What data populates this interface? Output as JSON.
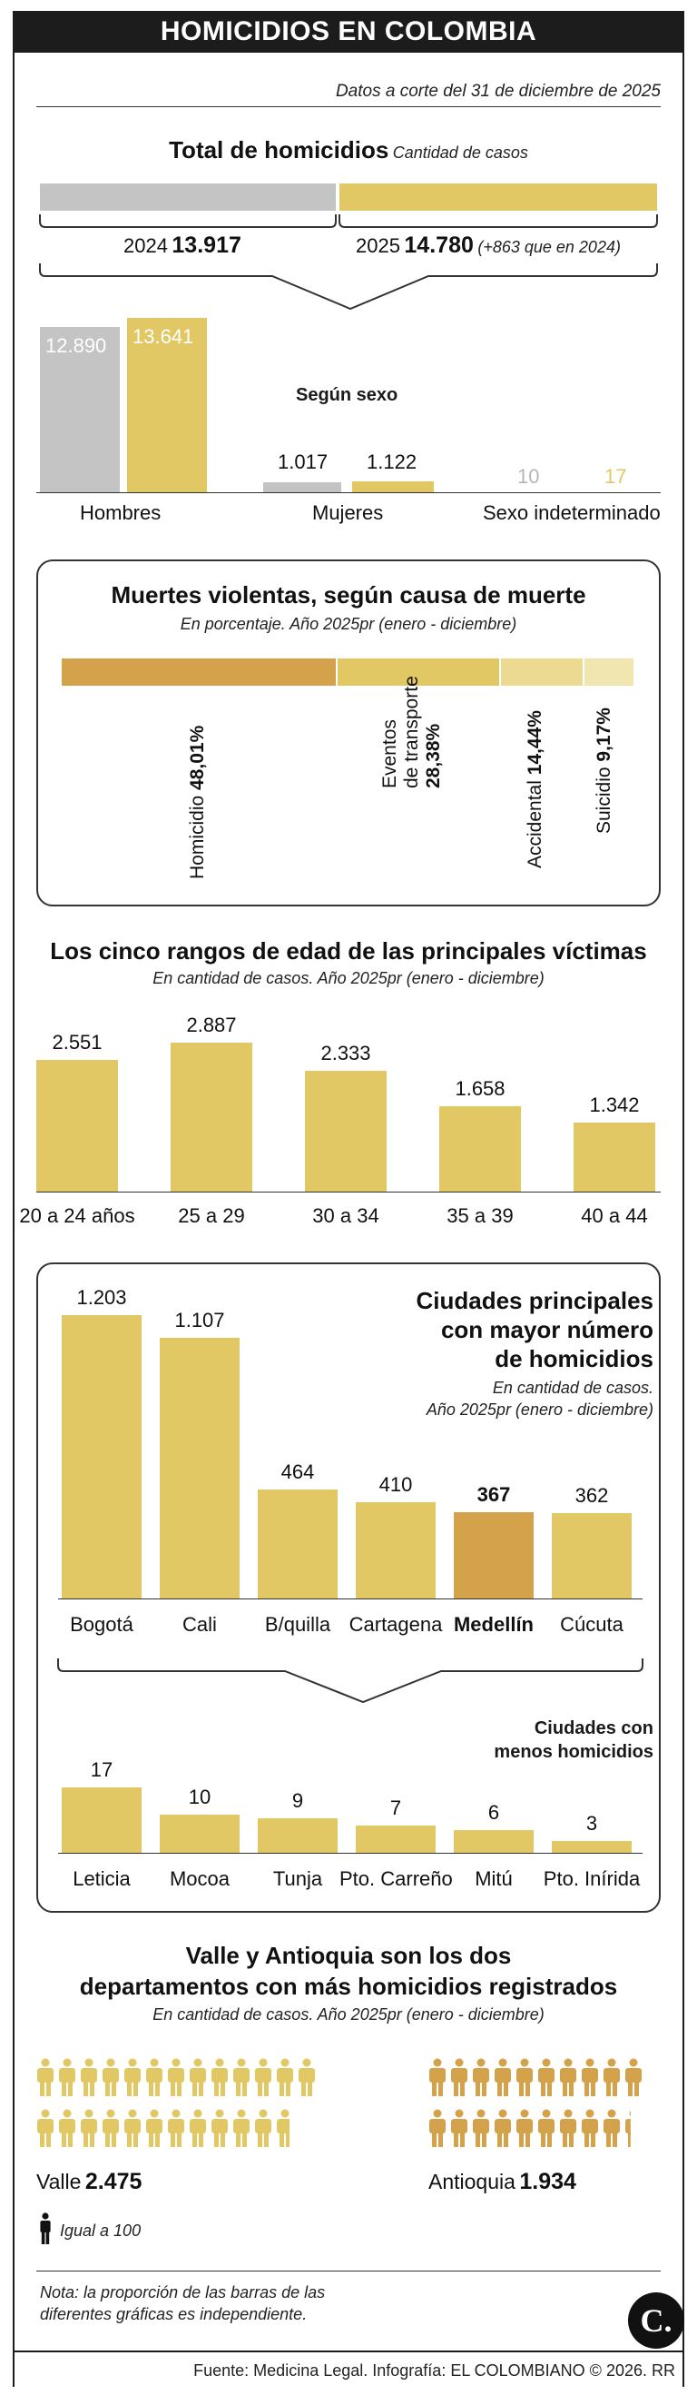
{
  "header": {
    "title": "HOMICIDIOS EN COLOMBIA"
  },
  "date_note": "Datos a corte del 31 de diciembre de 2025",
  "totals": {
    "title": "Total de homicidios",
    "subtitle": "Cantidad de casos",
    "y2024": {
      "year": "2024",
      "value": "13.917"
    },
    "y2025": {
      "year": "2025",
      "value": "14.780",
      "note": "(+863 que en 2024)"
    }
  },
  "sexo": {
    "title": "Según sexo",
    "categories": [
      "Hombres",
      "Mujeres",
      "Sexo indeterminado"
    ],
    "v2024": [
      "12.890",
      "1.017",
      "10"
    ],
    "v2025": [
      "13.641",
      "1.122",
      "17"
    ]
  },
  "causa": {
    "title": "Muertes violentas, según causa de muerte",
    "subtitle": "En porcentaje. Año 2025pr (enero - diciembre)",
    "items": [
      {
        "label": "Homicidio",
        "value": "48,01%"
      },
      {
        "label_line1": "Eventos",
        "label_line2": "de transporte",
        "value": "28,38%"
      },
      {
        "label": "Accidental",
        "value": "14,44%"
      },
      {
        "label": "Suicidio",
        "value": "9,17%"
      }
    ]
  },
  "edad": {
    "title": "Los cinco rangos de edad de las principales víctimas",
    "subtitle": "En cantidad de casos. Año 2025pr (enero - diciembre)",
    "labels": [
      "2.551",
      "2.887",
      "2.333",
      "1.658",
      "1.342"
    ],
    "categories": [
      "20 a 24 años",
      "25 a 29",
      "30 a 34",
      "35 a 39",
      "40 a 44"
    ]
  },
  "ciudades": {
    "title_line1": "Ciudades principales",
    "title_line2": "con mayor número",
    "title_line3": "de homicidios",
    "subtitle_line1": "En cantidad de casos.",
    "subtitle_line2": "Año 2025pr (enero - diciembre)",
    "labels": [
      "1.203",
      "1.107",
      "464",
      "410",
      "367",
      "362"
    ],
    "categories": [
      "Bogotá",
      "Cali",
      "B/quilla",
      "Cartagena",
      "Medellín",
      "Cúcuta"
    ]
  },
  "ciudades_menos": {
    "title_line1": "Ciudades con",
    "title_line2": "menos homicidios",
    "labels": [
      "17",
      "10",
      "9",
      "7",
      "6",
      "3"
    ],
    "categories": [
      "Leticia",
      "Mocoa",
      "Tunja",
      "Pto. Carreño",
      "Mitú",
      "Pto. Inírida"
    ]
  },
  "departamentos": {
    "title_line1": "Valle y Antioquia son los dos",
    "title_line2": "departamentos con más homicidios registrados",
    "subtitle": "En cantidad de casos. Año 2025pr (enero - diciembre)",
    "valle": {
      "name": "Valle",
      "value": "2.475"
    },
    "antioquia": {
      "name": "Antioquia",
      "value": "1.934"
    },
    "legend": "Igual a 100"
  },
  "note_line1": "Nota: la proporción de las barras de las",
  "note_line2": "diferentes gráficas es independiente.",
  "logo": "C.",
  "footer": "Fuente: Medicina Legal. Infografía: EL COLOMBIANO © 2026. RR",
  "colors": {
    "gold": "#e2c864",
    "gold_dark": "#d4a24a",
    "grey": "#c4c4c4",
    "dark": "#1c1c1c"
  },
  "chart_data": [
    {
      "type": "bar",
      "title": "Total de homicidios",
      "categories": [
        "2024",
        "2025"
      ],
      "values": [
        13917,
        14780
      ]
    },
    {
      "type": "bar",
      "title": "Según sexo",
      "categories": [
        "Hombres",
        "Mujeres",
        "Sexo indeterminado"
      ],
      "series": [
        {
          "name": "2024",
          "values": [
            12890,
            1017,
            10
          ]
        },
        {
          "name": "2025",
          "values": [
            13641,
            1122,
            17
          ]
        }
      ]
    },
    {
      "type": "bar",
      "title": "Muertes violentas, según causa de muerte",
      "categories": [
        "Homicidio",
        "Eventos de transporte",
        "Accidental",
        "Suicidio"
      ],
      "values": [
        48.01,
        28.38,
        14.44,
        9.17
      ]
    },
    {
      "type": "bar",
      "title": "Los cinco rangos de edad de las principales víctimas",
      "categories": [
        "20 a 24 años",
        "25 a 29",
        "30 a 34",
        "35 a 39",
        "40 a 44"
      ],
      "values": [
        2551,
        2887,
        2333,
        1658,
        1342
      ]
    },
    {
      "type": "bar",
      "title": "Ciudades principales con mayor número de homicidios",
      "categories": [
        "Bogotá",
        "Cali",
        "B/quilla",
        "Cartagena",
        "Medellín",
        "Cúcuta"
      ],
      "values": [
        1203,
        1107,
        464,
        410,
        367,
        362
      ]
    },
    {
      "type": "bar",
      "title": "Ciudades con menos homicidios",
      "categories": [
        "Leticia",
        "Mocoa",
        "Tunja",
        "Pto. Carreño",
        "Mitú",
        "Pto. Inírida"
      ],
      "values": [
        17,
        10,
        9,
        7,
        6,
        3
      ]
    },
    {
      "type": "bar",
      "title": "Valle y Antioquia son los dos departamentos con más homicidios registrados",
      "categories": [
        "Valle",
        "Antioquia"
      ],
      "values": [
        2475,
        1934
      ]
    }
  ]
}
